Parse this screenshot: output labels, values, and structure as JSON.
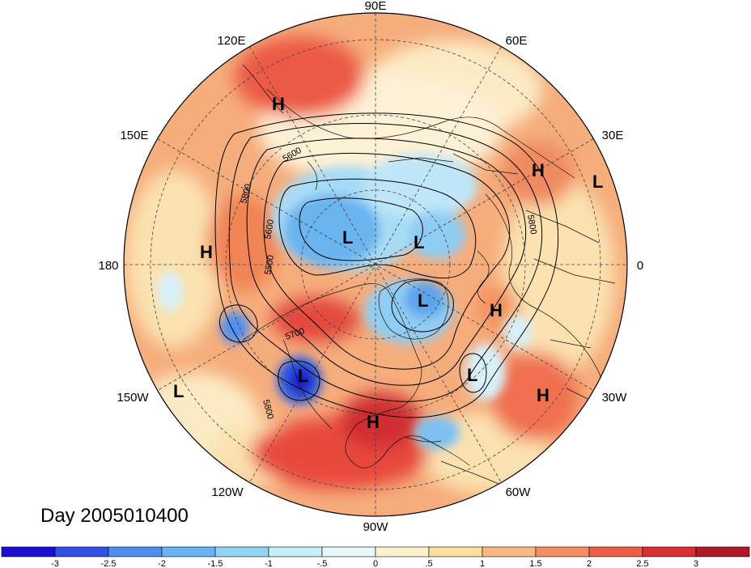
{
  "date_label": "Day 2005010400",
  "longitude_labels": [
    {
      "id": "90E",
      "text": "90E"
    },
    {
      "id": "60E",
      "text": "60E"
    },
    {
      "id": "30E",
      "text": "30E"
    },
    {
      "id": "0",
      "text": "0"
    },
    {
      "id": "30W",
      "text": "30W"
    },
    {
      "id": "60W",
      "text": "60W"
    },
    {
      "id": "90W",
      "text": "90W"
    },
    {
      "id": "120W",
      "text": "120W"
    },
    {
      "id": "150W",
      "text": "150W"
    },
    {
      "id": "180",
      "text": "180"
    },
    {
      "id": "150E",
      "text": "150E"
    },
    {
      "id": "120E",
      "text": "120E"
    }
  ],
  "pressure_centers": [
    {
      "type": "H",
      "text": "H"
    },
    {
      "type": "L",
      "text": "L"
    },
    {
      "type": "H",
      "text": "H"
    },
    {
      "type": "L",
      "text": "L"
    },
    {
      "type": "L",
      "text": "L"
    },
    {
      "type": "L",
      "text": "L"
    },
    {
      "type": "H",
      "text": "H"
    },
    {
      "type": "L",
      "text": "L"
    },
    {
      "type": "H",
      "text": "H"
    },
    {
      "type": "L",
      "text": "L"
    },
    {
      "type": "H",
      "text": "H"
    },
    {
      "type": "L",
      "text": "L"
    },
    {
      "type": "H",
      "text": "H"
    }
  ],
  "contour_labels": [
    "5600",
    "5800",
    "5600",
    "5500",
    "5700",
    "5800",
    "5800"
  ],
  "colorbar": {
    "colors": [
      "#1a0fd0",
      "#3050e6",
      "#4f8ff0",
      "#69b2f4",
      "#93d4f6",
      "#c6eefb",
      "#e8f7fb",
      "#fdf4cf",
      "#fbe0a0",
      "#f8b880",
      "#f48e60",
      "#ee5e48",
      "#da3033",
      "#b01a26"
    ],
    "tick_labels": [
      "-3",
      "-2.5",
      "-2",
      "-1.5",
      "-1",
      "-.5",
      "0",
      ".5",
      "1",
      "1.5",
      "2",
      "2.5",
      "3"
    ]
  },
  "colors": {
    "warm_field": "#f6ad7c",
    "land_outline": "#111111"
  }
}
